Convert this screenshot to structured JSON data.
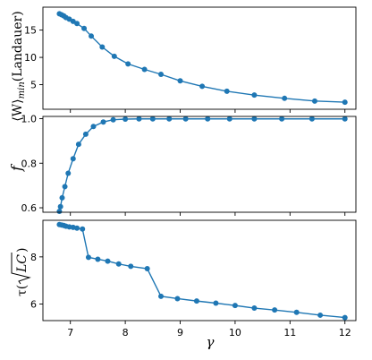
{
  "chart_data": [
    {
      "type": "line",
      "ylabel": "⟨W⟩min(Landauer)",
      "ylabel_main": "⟨W⟩",
      "ylabel_sub": "min",
      "ylabel_paren": "(Landauer)",
      "xlabel": "",
      "xlim": [
        6.5,
        12.2
      ],
      "ylim": [
        0.5,
        19.2
      ],
      "yticks": [
        5,
        10,
        15
      ],
      "ytick_labels": [
        "5",
        "10",
        "15"
      ],
      "show_xtick_labels": false,
      "x": [
        6.8,
        6.84,
        6.88,
        6.92,
        6.98,
        7.05,
        7.12,
        7.25,
        7.38,
        7.58,
        7.8,
        8.05,
        8.35,
        8.65,
        9.0,
        9.4,
        9.85,
        10.35,
        10.9,
        11.45,
        12.0
      ],
      "values": [
        18.0,
        17.8,
        17.6,
        17.3,
        17.0,
        16.6,
        16.2,
        15.3,
        13.9,
        11.9,
        10.2,
        8.8,
        7.8,
        6.9,
        5.7,
        4.7,
        3.8,
        3.1,
        2.5,
        2.0,
        1.8
      ]
    },
    {
      "type": "line",
      "ylabel": "f",
      "xlabel": "",
      "xlim": [
        6.5,
        12.2
      ],
      "ylim": [
        0.58,
        1.01
      ],
      "yticks": [
        0.6,
        0.8,
        1.0
      ],
      "ytick_labels": [
        "0.6",
        "0.8",
        "1.0"
      ],
      "show_xtick_labels": false,
      "x": [
        6.8,
        6.82,
        6.85,
        6.9,
        6.96,
        7.05,
        7.15,
        7.28,
        7.42,
        7.6,
        7.78,
        8.0,
        8.25,
        8.5,
        8.8,
        9.1,
        9.5,
        9.9,
        10.35,
        10.85,
        11.4,
        12.0
      ],
      "values": [
        0.584,
        0.605,
        0.645,
        0.695,
        0.755,
        0.82,
        0.885,
        0.93,
        0.965,
        0.985,
        0.995,
        0.998,
        0.999,
        0.999,
        0.999,
        0.999,
        0.999,
        0.999,
        0.999,
        0.999,
        0.999,
        0.999
      ]
    },
    {
      "type": "line",
      "ylabel": "τ(√LC)",
      "ylabel_prefix": "τ(",
      "ylabel_radicand": "LC",
      "ylabel_suffix": ")",
      "xlabel": "γ",
      "xlim": [
        6.5,
        12.2
      ],
      "ylim": [
        5.3,
        9.55
      ],
      "yticks": [
        6,
        8
      ],
      "ytick_labels": [
        "6",
        "8"
      ],
      "xticks": [
        7,
        8,
        9,
        10,
        11,
        12
      ],
      "xtick_labels": [
        "7",
        "8",
        "9",
        "10",
        "11",
        "12"
      ],
      "show_xtick_labels": true,
      "x": [
        6.8,
        6.84,
        6.88,
        6.92,
        6.98,
        7.05,
        7.12,
        7.22,
        7.33,
        7.5,
        7.68,
        7.88,
        8.1,
        8.4,
        8.65,
        8.95,
        9.3,
        9.65,
        10.0,
        10.35,
        10.72,
        11.12,
        11.55,
        12.0
      ],
      "values": [
        9.37,
        9.35,
        9.33,
        9.3,
        9.27,
        9.25,
        9.22,
        9.18,
        7.98,
        7.9,
        7.82,
        7.7,
        7.6,
        7.5,
        6.33,
        6.23,
        6.13,
        6.04,
        5.94,
        5.83,
        5.75,
        5.65,
        5.53,
        5.43
      ]
    }
  ]
}
